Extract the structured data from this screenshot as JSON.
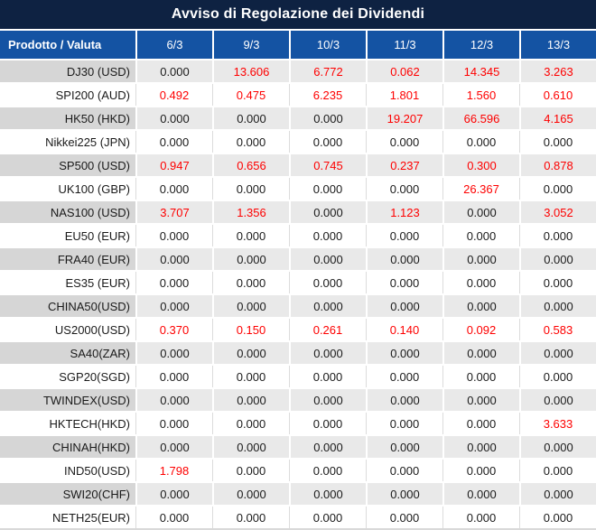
{
  "title": "Avviso di Regolazione dei Dividendi",
  "colors": {
    "title_bar_bg": "#0e2242",
    "header_bg": "#1453a3",
    "label_cell_gray": "#d6d6d6",
    "data_cell_gray": "#e9e9e9",
    "highlight_red": "#fe0000",
    "text_black": "#1a1a1a",
    "separator_light": "#dcdcdc",
    "bottom_border": "#d9d9d9"
  },
  "table": {
    "columns": [
      "Prodotto / Valuta",
      "6/3",
      "9/3",
      "10/3",
      "11/3",
      "12/3",
      "13/3"
    ],
    "rows": [
      {
        "product": "DJ30 (USD)",
        "values": [
          "0.000",
          "13.606",
          "6.772",
          "0.062",
          "14.345",
          "3.263"
        ]
      },
      {
        "product": "SPI200 (AUD)",
        "values": [
          "0.492",
          "0.475",
          "6.235",
          "1.801",
          "1.560",
          "0.610"
        ]
      },
      {
        "product": "HK50 (HKD)",
        "values": [
          "0.000",
          "0.000",
          "0.000",
          "19.207",
          "66.596",
          "4.165"
        ]
      },
      {
        "product": "Nikkei225 (JPN)",
        "values": [
          "0.000",
          "0.000",
          "0.000",
          "0.000",
          "0.000",
          "0.000"
        ]
      },
      {
        "product": "SP500 (USD)",
        "values": [
          "0.947",
          "0.656",
          "0.745",
          "0.237",
          "0.300",
          "0.878"
        ]
      },
      {
        "product": "UK100 (GBP)",
        "values": [
          "0.000",
          "0.000",
          "0.000",
          "0.000",
          "26.367",
          "0.000"
        ]
      },
      {
        "product": "NAS100 (USD)",
        "values": [
          "3.707",
          "1.356",
          "0.000",
          "1.123",
          "0.000",
          "3.052"
        ]
      },
      {
        "product": "EU50 (EUR)",
        "values": [
          "0.000",
          "0.000",
          "0.000",
          "0.000",
          "0.000",
          "0.000"
        ]
      },
      {
        "product": "FRA40 (EUR)",
        "values": [
          "0.000",
          "0.000",
          "0.000",
          "0.000",
          "0.000",
          "0.000"
        ]
      },
      {
        "product": "ES35 (EUR)",
        "values": [
          "0.000",
          "0.000",
          "0.000",
          "0.000",
          "0.000",
          "0.000"
        ]
      },
      {
        "product": "CHINA50(USD)",
        "values": [
          "0.000",
          "0.000",
          "0.000",
          "0.000",
          "0.000",
          "0.000"
        ]
      },
      {
        "product": "US2000(USD)",
        "values": [
          "0.370",
          "0.150",
          "0.261",
          "0.140",
          "0.092",
          "0.583"
        ]
      },
      {
        "product": "SA40(ZAR)",
        "values": [
          "0.000",
          "0.000",
          "0.000",
          "0.000",
          "0.000",
          "0.000"
        ]
      },
      {
        "product": "SGP20(SGD)",
        "values": [
          "0.000",
          "0.000",
          "0.000",
          "0.000",
          "0.000",
          "0.000"
        ]
      },
      {
        "product": "TWINDEX(USD)",
        "values": [
          "0.000",
          "0.000",
          "0.000",
          "0.000",
          "0.000",
          "0.000"
        ]
      },
      {
        "product": "HKTECH(HKD)",
        "values": [
          "0.000",
          "0.000",
          "0.000",
          "0.000",
          "0.000",
          "3.633"
        ]
      },
      {
        "product": "CHINAH(HKD)",
        "values": [
          "0.000",
          "0.000",
          "0.000",
          "0.000",
          "0.000",
          "0.000"
        ]
      },
      {
        "product": "IND50(USD)",
        "values": [
          "1.798",
          "0.000",
          "0.000",
          "0.000",
          "0.000",
          "0.000"
        ]
      },
      {
        "product": "SWI20(CHF)",
        "values": [
          "0.000",
          "0.000",
          "0.000",
          "0.000",
          "0.000",
          "0.000"
        ]
      },
      {
        "product": "NETH25(EUR)",
        "values": [
          "0.000",
          "0.000",
          "0.000",
          "0.000",
          "0.000",
          "0.000"
        ]
      }
    ]
  }
}
